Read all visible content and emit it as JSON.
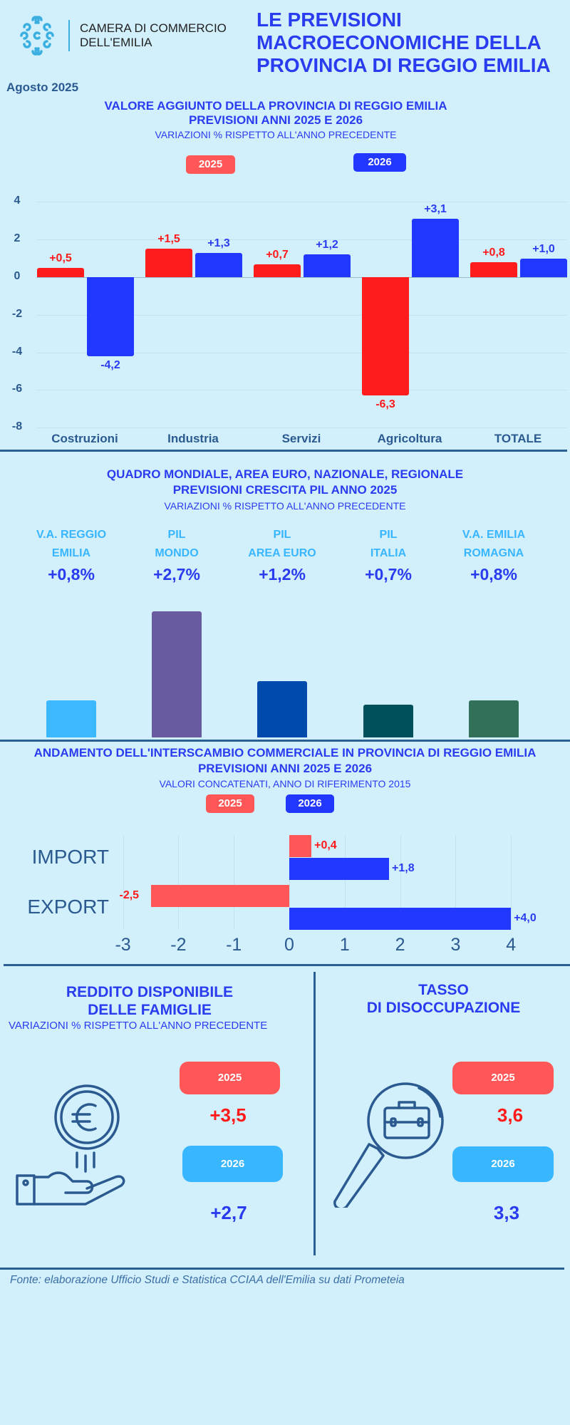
{
  "header": {
    "org_line1": "CAMERA DI COMMERCIO",
    "org_line2": "DELL'EMILIA",
    "title_lines": [
      "LE PREVISIONI",
      "MACROECONOMICHE DELLA",
      "PROVINCIA DI REGGIO EMILIA"
    ],
    "date": "Agosto 2025"
  },
  "colors": {
    "bg": "#d2effc",
    "red": "#ff1c1c",
    "blue": "#2338ff",
    "legend_red": "#ff5757",
    "light_blue": "#38b6ff",
    "navy": "#2a5a8f"
  },
  "chart_data": [
    {
      "type": "bar",
      "title": "VALORE AGGIUNTO DELLA PROVINCIA DI REGGIO EMILIA",
      "title2": "PREVISIONI ANNI 2025 E 2026",
      "subtitle": "VARIAZIONI % RISPETTO ALL'ANNO PRECEDENTE",
      "legend": [
        "2025",
        "2026"
      ],
      "categories": [
        "Costruzioni",
        "Industria",
        "Servizi",
        "Agricoltura",
        "TOTALE"
      ],
      "series": [
        {
          "name": "2025",
          "values": [
            0.5,
            1.5,
            0.7,
            -6.3,
            0.8
          ],
          "labels": [
            "+0,5",
            "+1,5",
            "+0,7",
            "-6,3",
            "+0,8"
          ]
        },
        {
          "name": "2026",
          "values": [
            -4.2,
            1.3,
            1.2,
            3.1,
            1.0
          ],
          "labels": [
            "-4,2",
            "+1,3",
            "+1,2",
            "+3,1",
            "+1,0"
          ]
        }
      ],
      "yticks": [
        "4",
        "2",
        "0",
        "-2",
        "-4",
        "-6",
        "-8"
      ],
      "ytick_values": [
        4,
        2,
        0,
        -2,
        -4,
        -6,
        -8
      ],
      "ylim": [
        -8,
        4
      ],
      "grid": true
    },
    {
      "type": "bar",
      "title": "QUADRO MONDIALE, AREA EURO, NAZIONALE, REGIONALE",
      "title2": "PREVISIONI CRESCITA PIL ANNO 2025",
      "subtitle": "VARIAZIONI % RISPETTO ALL'ANNO PRECEDENTE",
      "categories": [
        [
          "V.A. REGGIO",
          "EMILIA"
        ],
        [
          "PIL",
          "MONDO"
        ],
        [
          "PIL",
          "AREA EURO"
        ],
        [
          "PIL",
          "ITALIA"
        ],
        [
          "V.A. EMILIA",
          "ROMAGNA"
        ]
      ],
      "values": [
        0.8,
        2.7,
        1.2,
        0.7,
        0.8
      ],
      "labels": [
        "+0,8%",
        "+2,7%",
        "+1,2%",
        "+0,7%",
        "+0,8%"
      ],
      "bar_colors": [
        "#3bb8ff",
        "#6a5aa0",
        "#004aad",
        "#00505c",
        "#33705a"
      ]
    },
    {
      "type": "bar",
      "orientation": "horizontal",
      "title": "ANDAMENTO DELL'INTERSCAMBIO COMMERCIALE IN PROVINCIA DI REGGIO EMILIA",
      "title2": "PREVISIONI ANNI  2025 E 2026",
      "subtitle": "VALORI CONCATENATI, ANNO DI RIFERIMENTO 2015",
      "legend": [
        "2025",
        "2026"
      ],
      "categories": [
        "IMPORT",
        "EXPORT"
      ],
      "series": [
        {
          "name": "2025",
          "values": [
            0.4,
            -2.5
          ],
          "labels": [
            "+0,4",
            "-2,5"
          ]
        },
        {
          "name": "2026",
          "values": [
            1.8,
            4.0
          ],
          "labels": [
            "+1,8",
            "+4,0"
          ]
        }
      ],
      "xticks": [
        "-3",
        "-2",
        "-1",
        "0",
        "1",
        "2",
        "3",
        "4"
      ],
      "xtick_values": [
        -3,
        -2,
        -1,
        0,
        1,
        2,
        3,
        4
      ],
      "xlim": [
        -3,
        4
      ],
      "grid": true
    }
  ],
  "reddito": {
    "title1": "REDDITO DISPONIBILE",
    "title2": "DELLE FAMIGLIE",
    "subtitle": "VARIAZIONI % RISPETTO ALL'ANNO PRECEDENTE",
    "y1": "2025",
    "v1": "+3,5",
    "y2": "2026",
    "v2": "+2,7",
    "icon": "euro-coin-hand-icon"
  },
  "disoccupazione": {
    "title1": "TASSO",
    "title2": "DI DISOCCUPAZIONE",
    "y1": "2025",
    "v1": "3,6",
    "y2": "2026",
    "v2": "3,3",
    "icon": "magnifier-briefcase-icon"
  },
  "footer": "Fonte: elaborazione Ufficio Studi e Statistica CCIAA dell'Emilia su dati Prometeia"
}
